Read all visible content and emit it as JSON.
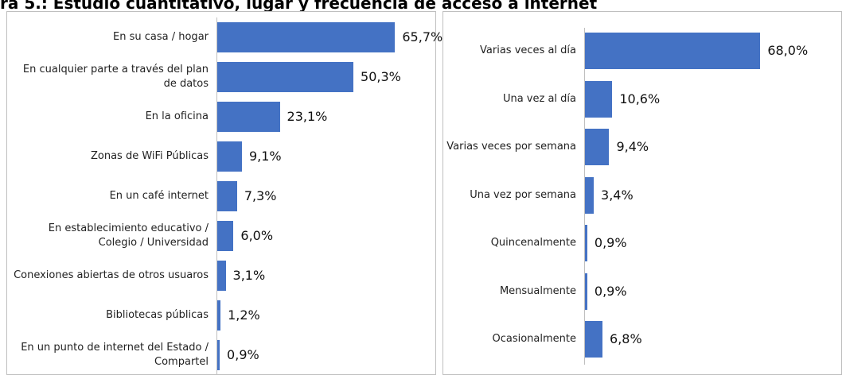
{
  "title": "ra 5.: Estudio cuantitativo, lugar y frecuencia de acceso a internet",
  "chart_data": [
    {
      "type": "bar",
      "orientation": "horizontal",
      "color": "#4472c4",
      "categories": [
        "En su casa / hogar",
        "En cualquier parte a través del plan de datos",
        "En la oficina",
        "Zonas de WiFi Públicas",
        "En un café internet",
        "En establecimiento educativo / Colegio / Universidad",
        "Conexiones abiertas de otros usuaros",
        "Bibliotecas públicas",
        "En un punto de internet del Estado / Compartel"
      ],
      "values": [
        65.7,
        50.3,
        23.1,
        9.1,
        7.3,
        6.0,
        3.1,
        1.2,
        0.9
      ],
      "value_labels": [
        "65,7%",
        "50,3%",
        "23,1%",
        "9,1%",
        "7,3%",
        "6,0%",
        "3,1%",
        "1,2%",
        "0,9%"
      ]
    },
    {
      "type": "bar",
      "orientation": "horizontal",
      "color": "#4472c4",
      "categories": [
        "Varias veces al día",
        "Una vez al día",
        "Varias veces por semana",
        "Una vez por semana",
        "Quincenalmente",
        "Mensualmente",
        "Ocasionalmente"
      ],
      "values": [
        68.0,
        10.6,
        9.4,
        3.4,
        0.9,
        0.9,
        6.8
      ],
      "value_labels": [
        "68,0%",
        "10,6%",
        "9,4%",
        "3,4%",
        "0,9%",
        "0,9%",
        "6,8%"
      ]
    }
  ]
}
